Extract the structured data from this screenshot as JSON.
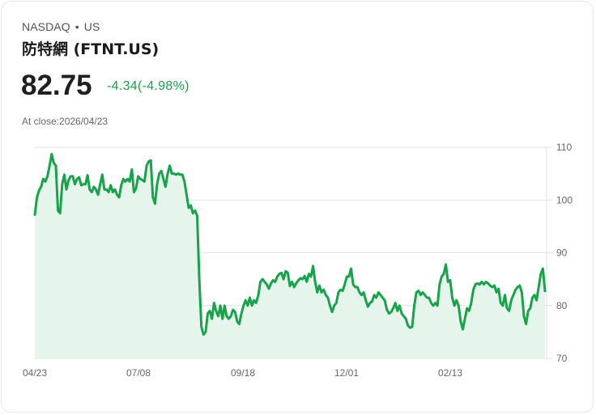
{
  "header": {
    "exchange": "NASDAQ",
    "separator": "•",
    "region": "US",
    "title": "防特網 (FTNT.US)",
    "price": "82.75",
    "change": "-4.34(-4.98%)",
    "close_label": "At close:2026/04/23"
  },
  "colors": {
    "line": "#16a34a",
    "fill": "#e6f5ec",
    "change": "#1aa34a",
    "grid": "#e2e2e2"
  },
  "chart_data": {
    "type": "area",
    "title": "防特網 (FTNT.US)",
    "xlabel": "",
    "ylabel": "",
    "ylim": [
      70,
      110
    ],
    "yticks": [
      "110",
      "100",
      "90",
      "80",
      "70"
    ],
    "xticks": [
      "04/23",
      "07/08",
      "09/18",
      "12/01",
      "02/13"
    ],
    "grid": true,
    "y_axis_position": "right",
    "values": [
      97.2,
      100.5,
      101.8,
      102.5,
      104.0,
      103.5,
      104.5,
      106.5,
      108.7,
      107.0,
      106.5,
      98.0,
      97.5,
      103.0,
      104.8,
      102.0,
      103.8,
      104.5,
      104.5,
      103.0,
      104.0,
      104.3,
      102.8,
      103.0,
      103.0,
      104.7,
      102.0,
      101.5,
      102.5,
      102.0,
      101.0,
      103.0,
      104.8,
      102.0,
      102.0,
      101.5,
      102.8,
      101.5,
      102.0,
      101.0,
      100.5,
      102.8,
      104.0,
      103.5,
      104.0,
      103.5,
      105.8,
      101.5,
      102.2,
      104.5,
      104.0,
      103.8,
      103.5,
      106.5,
      107.3,
      107.5,
      100.5,
      99.3,
      103.0,
      105.0,
      105.5,
      104.0,
      102.5,
      105.0,
      106.5,
      105.0,
      105.0,
      104.8,
      105.0,
      104.8,
      104.8,
      103.5,
      101.0,
      98.5,
      99.0,
      97.5,
      98.0,
      97.0,
      85.0,
      76.0,
      74.5,
      75.0,
      78.5,
      79.0,
      77.5,
      80.5,
      79.0,
      78.0,
      80.0,
      77.5,
      80.0,
      78.0,
      77.5,
      78.0,
      79.2,
      78.8,
      77.0,
      76.5,
      78.5,
      80.0,
      81.0,
      80.0,
      81.5,
      80.0,
      81.0,
      80.5,
      82.0,
      84.5,
      85.0,
      84.5,
      84.0,
      83.2,
      84.2,
      84.8,
      84.5,
      85.5,
      86.0,
      86.2,
      85.0,
      86.5,
      86.2,
      83.7,
      84.5,
      83.5,
      84.2,
      84.8,
      85.2,
      85.0,
      85.6,
      84.5,
      86.0,
      85.5,
      87.5,
      84.5,
      82.5,
      83.8,
      82.5,
      83.0,
      82.0,
      81.5,
      80.0,
      78.8,
      80.0,
      80.5,
      82.5,
      83.0,
      82.8,
      84.0,
      85.5,
      85.5,
      87.0,
      84.0,
      83.5,
      83.5,
      82.5,
      82.0,
      82.5,
      81.0,
      79.8,
      80.5,
      80.8,
      82.0,
      81.5,
      82.5,
      82.0,
      81.5,
      81.0,
      79.2,
      78.5,
      78.8,
      79.5,
      80.5,
      79.0,
      80.0,
      78.5,
      78.0,
      77.5,
      76.2,
      75.8,
      76.0,
      80.0,
      82.5,
      82.8,
      82.0,
      82.5,
      82.0,
      81.5,
      81.5,
      80.5,
      80.0,
      80.5,
      80.0,
      84.0,
      85.5,
      86.0,
      87.8,
      84.5,
      84.8,
      81.5,
      80.0,
      81.0,
      80.0,
      77.0,
      75.5,
      77.5,
      79.5,
      79.0,
      80.5,
      83.0,
      84.0,
      84.2,
      84.0,
      84.5,
      84.0,
      84.5,
      84.2,
      83.8,
      83.5,
      83.8,
      82.5,
      83.2,
      80.5,
      80.0,
      82.0,
      79.5,
      79.0,
      81.0,
      82.0,
      83.0,
      83.5,
      83.8,
      82.5,
      78.0,
      76.5,
      79.0,
      79.5,
      81.5,
      82.0,
      81.0,
      83.5,
      86.0,
      87.0,
      82.75
    ]
  }
}
